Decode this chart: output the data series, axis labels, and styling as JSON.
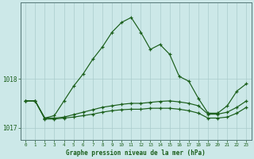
{
  "xlabel_label": "Graphe pression niveau de la mer (hPa)",
  "background_color": "#cce8e8",
  "grid_color": "#aacccc",
  "line_color": "#1a5e1a",
  "hours": [
    0,
    1,
    2,
    3,
    4,
    5,
    6,
    7,
    8,
    9,
    10,
    11,
    12,
    13,
    14,
    15,
    16,
    17,
    18,
    19,
    20,
    21,
    22,
    23
  ],
  "series1": [
    1017.55,
    1017.55,
    1017.2,
    1017.25,
    1017.55,
    1017.85,
    1018.1,
    1018.4,
    1018.65,
    1018.95,
    1019.15,
    1019.25,
    1018.95,
    1018.6,
    1018.7,
    1018.5,
    1018.05,
    1017.95,
    1017.6,
    1017.3,
    1017.3,
    1017.45,
    1017.75,
    1017.9
  ],
  "series2": [
    1017.55,
    1017.55,
    1017.2,
    1017.2,
    1017.22,
    1017.27,
    1017.32,
    1017.37,
    1017.42,
    1017.45,
    1017.48,
    1017.5,
    1017.5,
    1017.52,
    1017.54,
    1017.55,
    1017.53,
    1017.5,
    1017.45,
    1017.28,
    1017.28,
    1017.32,
    1017.42,
    1017.55
  ],
  "series3": [
    1017.55,
    1017.55,
    1017.18,
    1017.18,
    1017.2,
    1017.22,
    1017.25,
    1017.28,
    1017.32,
    1017.35,
    1017.37,
    1017.38,
    1017.38,
    1017.4,
    1017.4,
    1017.4,
    1017.38,
    1017.35,
    1017.3,
    1017.2,
    1017.2,
    1017.22,
    1017.3,
    1017.42
  ],
  "ylim": [
    1016.75,
    1019.55
  ],
  "yticks": [
    1017.0,
    1018.0
  ],
  "figsize": [
    3.2,
    2.0
  ],
  "dpi": 100
}
